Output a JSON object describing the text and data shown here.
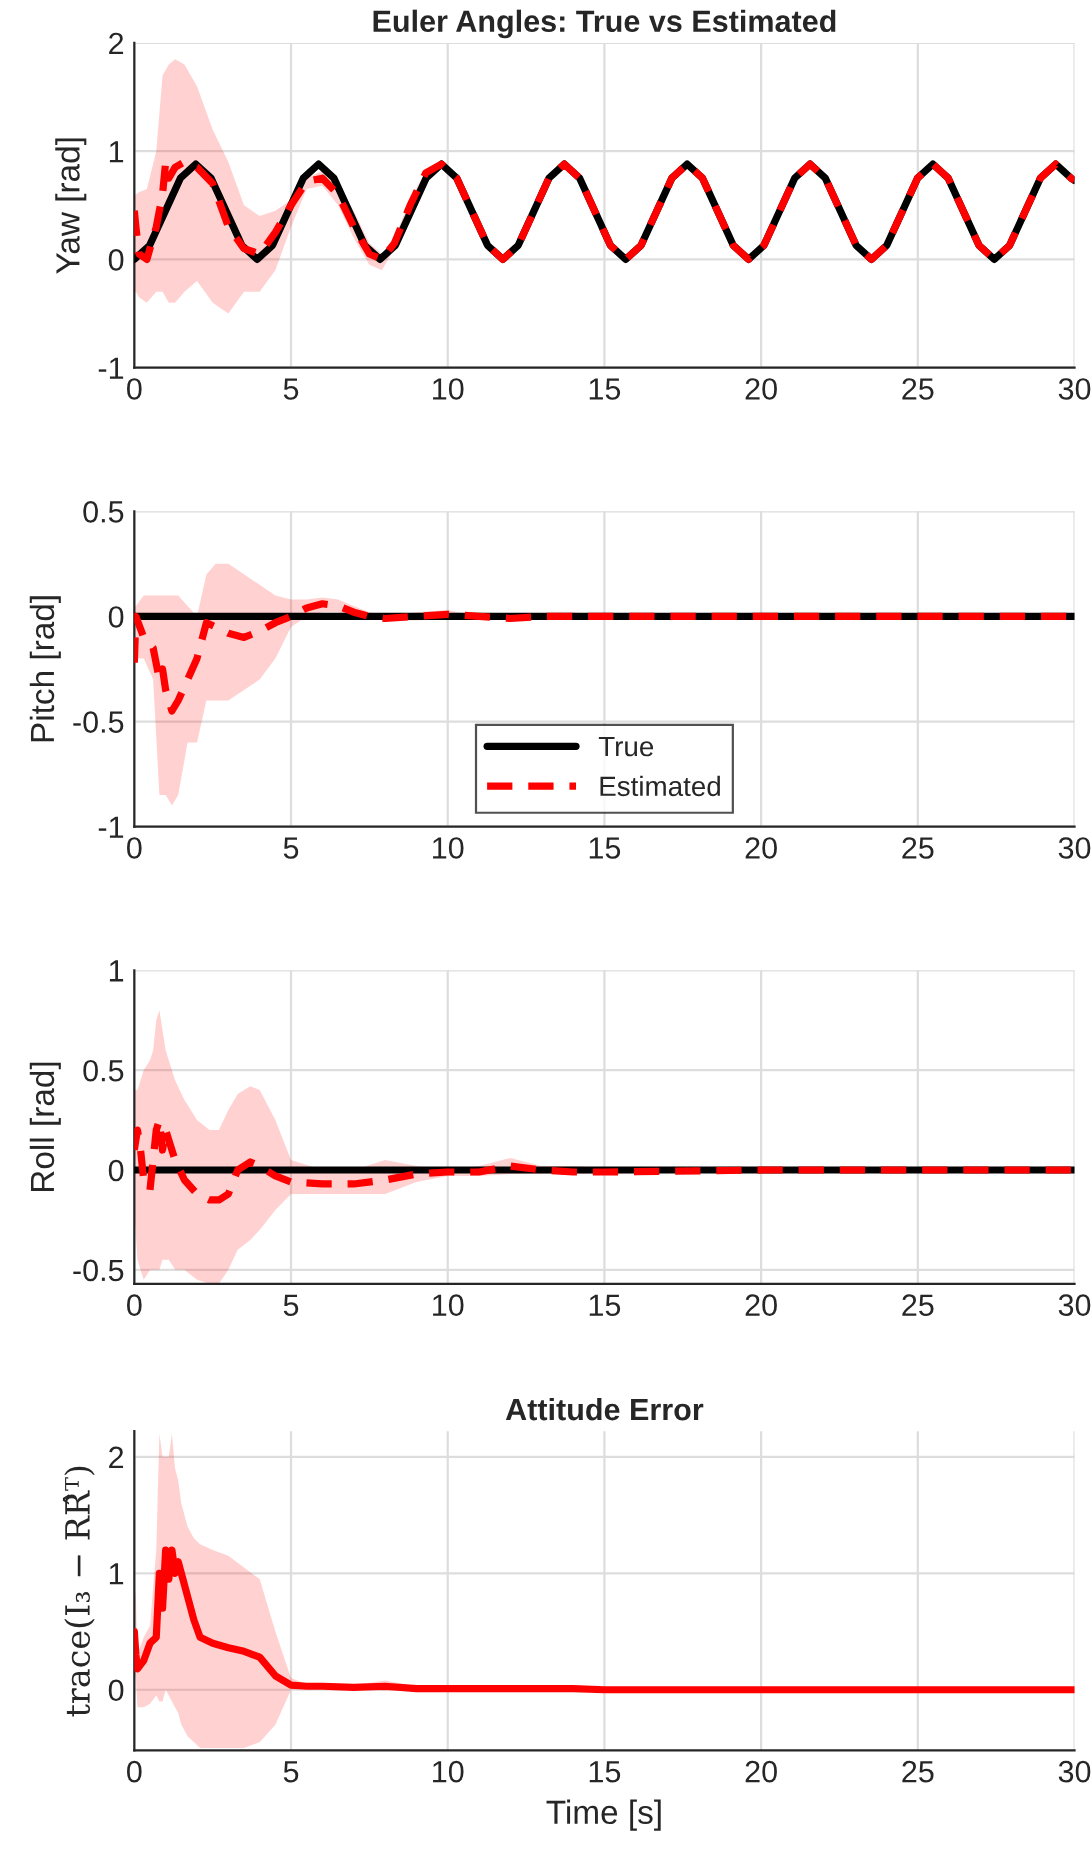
{
  "chart_data": [
    {
      "type": "line",
      "title": "Euler Angles: True vs Estimated",
      "ylabel": "Yaw [rad]",
      "xlim": [
        0,
        30
      ],
      "xticks": [
        0,
        5,
        10,
        15,
        20,
        25,
        30
      ],
      "ylim": [
        -1,
        2
      ],
      "yticks": [
        -1,
        0,
        1,
        2
      ],
      "grid": true,
      "series": [
        {
          "color": "#000000",
          "line_style": "solid",
          "x": [
            0,
            0.49,
            0.98,
            1.47,
            1.96,
            2.45,
            2.94,
            3.43,
            3.92,
            4.41,
            4.9,
            5.39,
            5.88,
            6.37,
            6.86,
            7.35,
            7.84,
            8.33,
            8.82,
            9.31,
            9.8,
            10.29,
            10.78,
            11.27,
            11.76,
            12.25,
            12.74,
            13.23,
            13.72,
            14.21,
            14.7,
            15.19,
            15.68,
            16.17,
            16.66,
            17.15,
            17.64,
            18.13,
            18.62,
            19.11,
            19.6,
            20.09,
            20.58,
            21.07,
            21.56,
            22.05,
            22.54,
            23.03,
            23.52,
            24.01,
            24.5,
            24.99,
            25.48,
            25.97,
            26.46,
            26.95,
            27.44,
            27.93,
            28.42,
            28.91,
            29.4,
            29.89,
            30
          ],
          "values": [
            0,
            0.13,
            0.44,
            0.75,
            0.88,
            0.75,
            0.44,
            0.13,
            0,
            0.13,
            0.44,
            0.75,
            0.88,
            0.75,
            0.44,
            0.13,
            0,
            0.13,
            0.44,
            0.75,
            0.88,
            0.75,
            0.44,
            0.13,
            0,
            0.13,
            0.44,
            0.75,
            0.88,
            0.75,
            0.44,
            0.13,
            0,
            0.13,
            0.44,
            0.75,
            0.88,
            0.75,
            0.44,
            0.13,
            0,
            0.13,
            0.44,
            0.75,
            0.88,
            0.75,
            0.44,
            0.13,
            0,
            0.13,
            0.44,
            0.75,
            0.88,
            0.75,
            0.44,
            0.13,
            0,
            0.13,
            0.44,
            0.75,
            0.88,
            0.75,
            0.73
          ]
        },
        {
          "color": "#ff0000",
          "line_style": "dashed",
          "x": [
            0,
            0.05,
            0.15,
            0.4,
            0.7,
            0.9,
            1.0,
            1.1,
            1.3,
            1.6,
            2.0,
            2.5,
            3.0,
            3.5,
            4.0,
            4.5,
            5.0,
            5.5,
            6.0,
            6.5,
            7.0,
            7.5,
            7.9,
            8.3,
            8.8,
            9.3,
            9.8,
            10.29,
            10.78,
            11.27,
            11.76,
            12.25,
            12.74,
            13.23,
            13.72,
            14.21,
            14.7,
            15.19,
            15.68,
            16.17,
            16.66,
            17.15,
            17.64,
            18.13,
            18.62,
            19.11,
            19.6,
            20.09,
            20.58,
            21.07,
            21.56,
            22.05,
            22.54,
            23.03,
            23.52,
            24.01,
            24.5,
            24.99,
            25.48,
            25.97,
            26.46,
            26.95,
            27.44,
            27.93,
            28.42,
            28.91,
            29.4,
            29.89,
            30
          ],
          "values": [
            0.45,
            0.3,
            0.05,
            0.0,
            0.3,
            0.6,
            0.9,
            0.75,
            0.85,
            0.9,
            0.85,
            0.7,
            0.3,
            0.1,
            0.05,
            0.25,
            0.5,
            0.72,
            0.75,
            0.6,
            0.3,
            0.05,
            0.0,
            0.15,
            0.5,
            0.8,
            0.88,
            0.75,
            0.44,
            0.13,
            0,
            0.13,
            0.44,
            0.75,
            0.88,
            0.75,
            0.44,
            0.13,
            0,
            0.13,
            0.44,
            0.75,
            0.88,
            0.75,
            0.44,
            0.13,
            0,
            0.13,
            0.44,
            0.75,
            0.88,
            0.75,
            0.44,
            0.13,
            0,
            0.13,
            0.44,
            0.75,
            0.88,
            0.75,
            0.44,
            0.13,
            0,
            0.13,
            0.44,
            0.75,
            0.88,
            0.75,
            0.73
          ],
          "upper": [
            0.6,
            0.6,
            0.62,
            0.65,
            1.0,
            1.7,
            1.75,
            1.8,
            1.85,
            1.8,
            1.6,
            1.2,
            0.9,
            0.5,
            0.4,
            0.45,
            0.55,
            0.75,
            0.82,
            0.7,
            0.45,
            0.15,
            0.05,
            0.2,
            0.55,
            0.82,
            0.9,
            null,
            null,
            null,
            null,
            null,
            null,
            null,
            null,
            null,
            null,
            null,
            null,
            null,
            null,
            null,
            null,
            null,
            null,
            null,
            null,
            null,
            null,
            null,
            null,
            null,
            null,
            null,
            null,
            null,
            null,
            null,
            null,
            null,
            null,
            null,
            null,
            null,
            null,
            null,
            null,
            null,
            null
          ],
          "lower": [
            -0.3,
            -0.3,
            -0.35,
            -0.4,
            -0.3,
            -0.3,
            -0.35,
            -0.4,
            -0.4,
            -0.3,
            -0.2,
            -0.4,
            -0.5,
            -0.3,
            -0.3,
            -0.1,
            0.3,
            0.65,
            0.68,
            0.5,
            0.2,
            -0.05,
            -0.1,
            0.1,
            0.45,
            0.78,
            0.86,
            null,
            null,
            null,
            null,
            null,
            null,
            null,
            null,
            null,
            null,
            null,
            null,
            null,
            null,
            null,
            null,
            null,
            null,
            null,
            null,
            null,
            null,
            null,
            null,
            null,
            null,
            null,
            null,
            null,
            null,
            null,
            null,
            null,
            null,
            null,
            null,
            null,
            null,
            null,
            null,
            null,
            null
          ]
        }
      ]
    },
    {
      "type": "line",
      "ylabel": "Pitch [rad]",
      "xlim": [
        0,
        30
      ],
      "xticks": [
        0,
        5,
        10,
        15,
        20,
        25,
        30
      ],
      "ylim": [
        -1,
        0.5
      ],
      "yticks": [
        -1,
        -0.5,
        0,
        0.5
      ],
      "grid": true,
      "legend": "bottom",
      "series": [
        {
          "name": "True",
          "color": "#000000",
          "line_style": "solid",
          "x": [
            0,
            30
          ],
          "values": [
            0,
            0
          ]
        },
        {
          "name": "Estimated",
          "color": "#ff0000",
          "line_style": "dashed",
          "x": [
            0,
            0.05,
            0.3,
            0.6,
            0.8,
            0.9,
            1.0,
            1.2,
            1.4,
            1.7,
            2.0,
            2.3,
            2.6,
            3.0,
            3.5,
            4.0,
            4.5,
            5.0,
            5.5,
            6.0,
            6.5,
            7.0,
            7.5,
            8,
            9,
            10,
            11,
            12,
            13,
            14,
            15,
            30
          ],
          "values": [
            -0.22,
            0,
            -0.1,
            -0.15,
            -0.3,
            -0.25,
            -0.35,
            -0.45,
            -0.4,
            -0.3,
            -0.2,
            -0.03,
            -0.05,
            -0.08,
            -0.1,
            -0.07,
            -0.03,
            0.0,
            0.04,
            0.06,
            0.05,
            0.02,
            0,
            -0.01,
            0,
            0.01,
            0,
            -0.01,
            0,
            0,
            0,
            0
          ],
          "upper": [
            0.05,
            0.05,
            0.1,
            0.1,
            0.1,
            0.1,
            0.1,
            0.1,
            0.1,
            0.05,
            0.0,
            0.2,
            0.25,
            0.25,
            0.2,
            0.15,
            0.1,
            0.08,
            0.08,
            0.09,
            0.08,
            0.05,
            0.02,
            0.0,
            0.02,
            0.03,
            0,
            0,
            0,
            0.02,
            0,
            0
          ],
          "lower": [
            -0.25,
            -0.2,
            -0.2,
            -0.3,
            -0.85,
            -0.85,
            -0.85,
            -0.9,
            -0.85,
            -0.6,
            -0.6,
            -0.4,
            -0.4,
            -0.4,
            -0.35,
            -0.3,
            -0.2,
            -0.05,
            0.0,
            0.02,
            0.02,
            0.0,
            -0.01,
            -0.02,
            -0.02,
            -0.01,
            0,
            -0.01,
            0,
            -0.01,
            0,
            0
          ]
        }
      ]
    },
    {
      "type": "line",
      "ylabel": "Roll [rad]",
      "xlim": [
        0,
        30
      ],
      "xticks": [
        0,
        5,
        10,
        15,
        20,
        25,
        30
      ],
      "ylim": [
        -0.57,
        1
      ],
      "yticks": [
        -0.5,
        0,
        0.5,
        1
      ],
      "grid": true,
      "series": [
        {
          "color": "#000000",
          "line_style": "solid",
          "x": [
            0,
            30
          ],
          "values": [
            0,
            0
          ]
        },
        {
          "color": "#ff0000",
          "line_style": "dashed",
          "x": [
            0,
            0.1,
            0.2,
            0.3,
            0.5,
            0.6,
            0.7,
            0.8,
            0.9,
            1.0,
            1.1,
            1.3,
            1.6,
            2.0,
            2.4,
            2.7,
            3.0,
            3.3,
            3.7,
            4.0,
            4.5,
            5,
            6,
            7,
            8,
            9,
            10,
            11,
            12,
            13,
            14,
            15,
            20,
            30
          ],
          "values": [
            0.1,
            0.2,
            0.1,
            -0.05,
            -0.1,
            0.05,
            0.2,
            0.25,
            0.1,
            0.2,
            0.15,
            0.05,
            -0.05,
            -0.12,
            -0.15,
            -0.15,
            -0.12,
            0,
            0.04,
            0.02,
            -0.03,
            -0.06,
            -0.07,
            -0.07,
            -0.05,
            -0.02,
            -0.01,
            -0.01,
            0.02,
            0,
            -0.01,
            -0.01,
            0,
            0
          ],
          "upper": [
            0.4,
            0.4,
            0.45,
            0.5,
            0.55,
            0.6,
            0.75,
            0.8,
            0.7,
            0.6,
            0.55,
            0.45,
            0.35,
            0.25,
            0.2,
            0.2,
            0.3,
            0.38,
            0.42,
            0.4,
            0.25,
            0.05,
            0.0,
            0.0,
            0.05,
            0.02,
            0.0,
            0.02,
            0.06,
            0.02,
            0.02,
            0.01,
            0,
            0
          ],
          "lower": [
            -0.2,
            -0.45,
            -0.5,
            -0.55,
            -0.5,
            -0.5,
            -0.5,
            -0.5,
            -0.45,
            -0.45,
            -0.45,
            -0.5,
            -0.5,
            -0.55,
            -0.57,
            -0.57,
            -0.5,
            -0.4,
            -0.35,
            -0.3,
            -0.2,
            -0.12,
            -0.12,
            -0.12,
            -0.12,
            -0.06,
            -0.03,
            -0.03,
            -0.02,
            -0.02,
            -0.02,
            -0.02,
            0,
            0
          ]
        }
      ]
    },
    {
      "type": "line",
      "title": "Attitude Error",
      "xlabel": "Time [s]",
      "ylabel": "trace(I₃ − RR̂ᵀ)",
      "xlim": [
        0,
        30
      ],
      "xticks": [
        0,
        5,
        10,
        15,
        20,
        25,
        30
      ],
      "ylim": [
        -0.52,
        2.22
      ],
      "yticks": [
        0,
        1,
        2
      ],
      "grid": true,
      "series": [
        {
          "color": "#ff0000",
          "line_style": "solid",
          "x": [
            0,
            0.05,
            0.1,
            0.3,
            0.5,
            0.7,
            0.8,
            0.9,
            1.0,
            1.1,
            1.2,
            1.3,
            1.4,
            1.5,
            1.7,
            1.9,
            2.1,
            2.5,
            3,
            3.5,
            4,
            4.5,
            5,
            5.5,
            6,
            7,
            8,
            9,
            10,
            12,
            14,
            15,
            30
          ],
          "values": [
            0.5,
            0.3,
            0.18,
            0.25,
            0.4,
            0.45,
            1.0,
            0.7,
            1.2,
            0.95,
            1.2,
            1.0,
            1.1,
            1.0,
            0.8,
            0.6,
            0.45,
            0.4,
            0.36,
            0.33,
            0.28,
            0.12,
            0.04,
            0.03,
            0.03,
            0.02,
            0.03,
            0.01,
            0.01,
            0.01,
            0.01,
            0,
            0
          ],
          "upper": [
            0.9,
            0.8,
            0.3,
            0.45,
            0.55,
            1.2,
            2.2,
            2.0,
            2.0,
            2.0,
            2.2,
            1.9,
            1.8,
            1.6,
            1.4,
            1.3,
            1.25,
            1.2,
            1.15,
            1.05,
            0.95,
            0.5,
            0.1,
            0.05,
            0.05,
            0.04,
            0.08,
            0.03,
            0.02,
            0.02,
            0.02,
            0,
            0
          ],
          "lower": [
            0.15,
            0.1,
            -0.15,
            -0.15,
            -0.12,
            -0.05,
            -0.1,
            -0.1,
            0.0,
            -0.05,
            -0.1,
            -0.15,
            -0.2,
            -0.3,
            -0.4,
            -0.45,
            -0.5,
            -0.5,
            -0.5,
            -0.5,
            -0.45,
            -0.3,
            0.0,
            0.01,
            0.01,
            0.0,
            -0.01,
            0,
            0,
            0,
            0,
            0,
            0
          ]
        }
      ]
    }
  ]
}
